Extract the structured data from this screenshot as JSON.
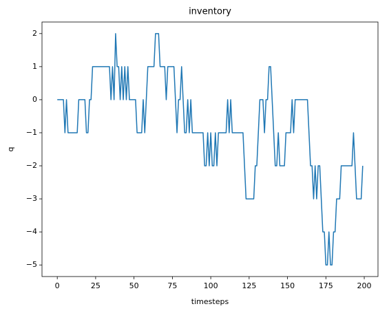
{
  "chart_data": {
    "type": "line",
    "title": "inventory",
    "xlabel": "timesteps",
    "ylabel": "q",
    "x": [
      0,
      1,
      2,
      3,
      4,
      5,
      6,
      7,
      8,
      9,
      10,
      11,
      12,
      13,
      14,
      15,
      16,
      17,
      18,
      19,
      20,
      21,
      22,
      23,
      24,
      25,
      26,
      27,
      28,
      29,
      30,
      31,
      32,
      33,
      34,
      35,
      36,
      37,
      38,
      39,
      40,
      41,
      42,
      43,
      44,
      45,
      46,
      47,
      48,
      49,
      50,
      51,
      52,
      53,
      54,
      55,
      56,
      57,
      58,
      59,
      60,
      61,
      62,
      63,
      64,
      65,
      66,
      67,
      68,
      69,
      70,
      71,
      72,
      73,
      74,
      75,
      76,
      77,
      78,
      79,
      80,
      81,
      82,
      83,
      84,
      85,
      86,
      87,
      88,
      89,
      90,
      91,
      92,
      93,
      94,
      95,
      96,
      97,
      98,
      99,
      100,
      101,
      102,
      103,
      104,
      105,
      106,
      107,
      108,
      109,
      110,
      111,
      112,
      113,
      114,
      115,
      116,
      117,
      118,
      119,
      120,
      121,
      122,
      123,
      124,
      125,
      126,
      127,
      128,
      129,
      130,
      131,
      132,
      133,
      134,
      135,
      136,
      137,
      138,
      139,
      140,
      141,
      142,
      143,
      144,
      145,
      146,
      147,
      148,
      149,
      150,
      151,
      152,
      153,
      154,
      155,
      156,
      157,
      158,
      159,
      160,
      161,
      162,
      163,
      164,
      165,
      166,
      167,
      168,
      169,
      170,
      171,
      172,
      173,
      174,
      175,
      176,
      177,
      178,
      179,
      180,
      181,
      182,
      183,
      184,
      185,
      186,
      187,
      188,
      189,
      190,
      191,
      192,
      193,
      194,
      195,
      196,
      197,
      198,
      199
    ],
    "series": [
      {
        "name": "q",
        "color": "#1f77b4",
        "values": [
          0,
          0,
          0,
          0,
          0,
          -1,
          0,
          -1,
          -1,
          -1,
          -1,
          -1,
          -1,
          -1,
          0,
          0,
          0,
          0,
          0,
          -1,
          -1,
          0,
          0,
          1,
          1,
          1,
          1,
          1,
          1,
          1,
          1,
          1,
          1,
          1,
          1,
          0,
          1,
          0,
          2,
          1,
          1,
          0,
          1,
          0,
          1,
          0,
          1,
          0,
          0,
          0,
          0,
          0,
          -1,
          -1,
          -1,
          -1,
          0,
          -1,
          0,
          1,
          1,
          1,
          1,
          1,
          2,
          2,
          2,
          1,
          1,
          1,
          1,
          0,
          1,
          1,
          1,
          1,
          1,
          0,
          -1,
          0,
          0,
          1,
          0,
          -1,
          -1,
          0,
          -1,
          0,
          -1,
          -1,
          -1,
          -1,
          -1,
          -1,
          -1,
          -1,
          -2,
          -2,
          -1,
          -2,
          -1,
          -2,
          -2,
          -1,
          -2,
          -1,
          -1,
          -1,
          -1,
          -1,
          -1,
          0,
          -1,
          0,
          -1,
          -1,
          -1,
          -1,
          -1,
          -1,
          -1,
          -1,
          -2,
          -3,
          -3,
          -3,
          -3,
          -3,
          -3,
          -2,
          -2,
          -1,
          0,
          0,
          0,
          -1,
          0,
          0,
          1,
          1,
          0,
          -1,
          -2,
          -2,
          -1,
          -2,
          -2,
          -2,
          -2,
          -1,
          -1,
          -1,
          -1,
          0,
          -1,
          0,
          0,
          0,
          0,
          0,
          0,
          0,
          0,
          0,
          -1,
          -2,
          -2,
          -3,
          -2,
          -3,
          -2,
          -2,
          -3,
          -4,
          -4,
          -5,
          -5,
          -4,
          -5,
          -5,
          -4,
          -4,
          -3,
          -3,
          -3,
          -2,
          -2,
          -2,
          -2,
          -2,
          -2,
          -2,
          -2,
          -1,
          -2,
          -3,
          -3,
          -3,
          -3,
          -2
        ]
      }
    ],
    "xlim": [
      -9.95,
      208.95
    ],
    "xticks": [
      0,
      25,
      50,
      75,
      100,
      125,
      150,
      175,
      200
    ],
    "ylim": [
      -5.35,
      2.35
    ],
    "yticks": [
      {
        "value": -5,
        "label": "−5"
      },
      {
        "value": -4,
        "label": "−4"
      },
      {
        "value": -3,
        "label": "−3"
      },
      {
        "value": -2,
        "label": "−2"
      },
      {
        "value": -1,
        "label": "−1"
      },
      0,
      1,
      2
    ],
    "grid": false
  }
}
